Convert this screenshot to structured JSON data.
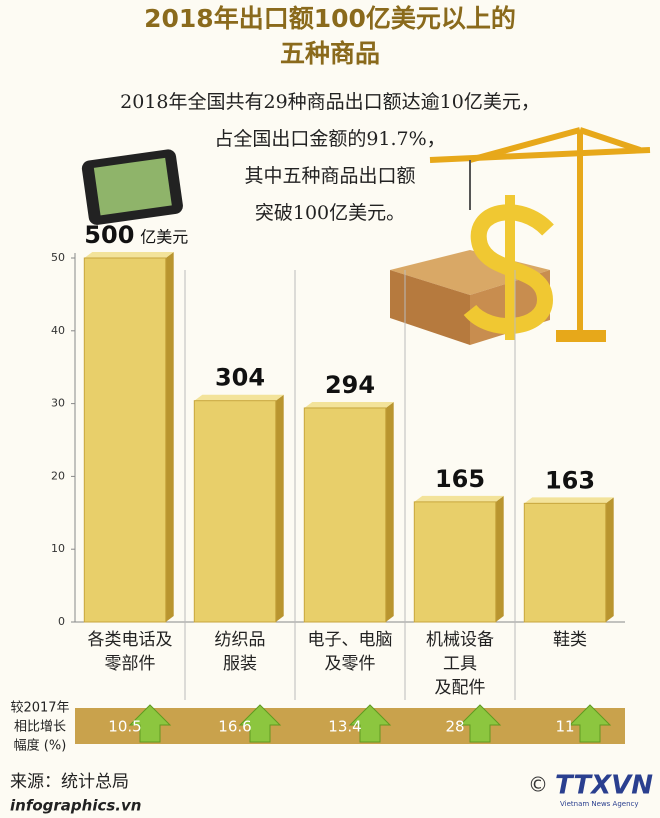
{
  "chart_data": {
    "type": "bar",
    "title": [
      "2018年出口额100亿美元以上的",
      "五种商品"
    ],
    "subtitle": [
      "2018年全国共有29种商品出口额达逾10亿美元，",
      "占全国出口金额的91.7%，",
      "其中五种商品出口额",
      "突破100亿美元。"
    ],
    "categories": [
      [
        "各类电话及",
        "零部件"
      ],
      [
        "纺织品",
        "服装"
      ],
      [
        "电子、电脑",
        "及零件"
      ],
      [
        "机械设备",
        "工具",
        "及配件"
      ],
      [
        "鞋类"
      ]
    ],
    "values": [
      50,
      30.4,
      29.4,
      16.5,
      16.3
    ],
    "value_labels": [
      "500",
      "304",
      "294",
      "165",
      "163"
    ],
    "value_unit": "亿美元",
    "color": "#e8cf6a",
    "ylim": [
      0,
      50
    ],
    "yticks": [
      0,
      10,
      20,
      30,
      40,
      50
    ],
    "growth_label": [
      "较2017年",
      "相比增长",
      "幅度 (%)"
    ],
    "growth": [
      10.5,
      16.6,
      13.4,
      28,
      11
    ],
    "source": "来源：统计总局",
    "site": "infographics.vn",
    "copyright": "©",
    "agency": "TTXVN",
    "agency_name": "Vietnam News Agency"
  }
}
